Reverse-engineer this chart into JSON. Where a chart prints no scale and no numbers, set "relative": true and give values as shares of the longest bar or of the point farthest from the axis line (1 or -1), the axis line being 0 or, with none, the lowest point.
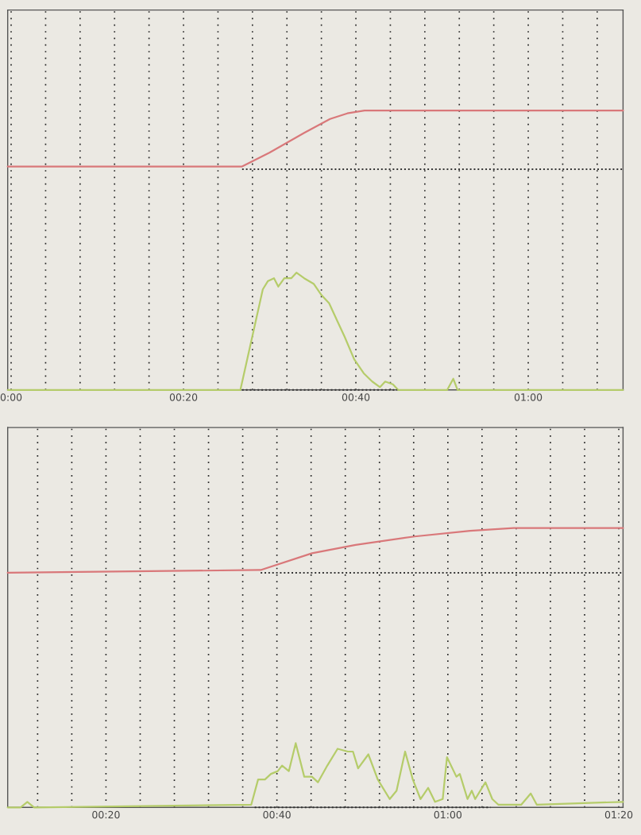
{
  "chart_data": [
    {
      "type": "line",
      "relative": true,
      "grid": "x",
      "xlim": [
        -0.4,
        71
      ],
      "xticks": [
        {
          "value": 0,
          "label": "0:00"
        },
        {
          "value": 4,
          "label": null
        },
        {
          "value": 8,
          "label": null
        },
        {
          "value": 12,
          "label": null
        },
        {
          "value": 16,
          "label": null
        },
        {
          "value": 20,
          "label": "00:20"
        },
        {
          "value": 24,
          "label": null
        },
        {
          "value": 28,
          "label": null
        },
        {
          "value": 32,
          "label": null
        },
        {
          "value": 36,
          "label": null
        },
        {
          "value": 40,
          "label": "00:40"
        },
        {
          "value": 44,
          "label": null
        },
        {
          "value": 48,
          "label": null
        },
        {
          "value": 52,
          "label": null
        },
        {
          "value": 56,
          "label": null
        },
        {
          "value": 60,
          "label": "01:00"
        },
        {
          "value": 64,
          "label": null
        },
        {
          "value": 68,
          "label": null
        }
      ],
      "series": [
        {
          "color": "#333333",
          "line_style": "dotted",
          "x": [
            26.8,
            71
          ],
          "values": [
            0.79,
            0.79
          ]
        },
        {
          "color": "#333333",
          "line_style": "dotted",
          "x": [
            26.8,
            44.8
          ],
          "values": [
            0.0,
            0.0
          ]
        },
        {
          "color": "#d9787a",
          "line_style": "solid",
          "x": [
            -0.4,
            26.8,
            30,
            34,
            37,
            39,
            41,
            45,
            71
          ],
          "values": [
            0.8,
            0.8,
            0.85,
            0.92,
            0.97,
            0.99,
            1.0,
            1.0,
            1.0
          ]
        },
        {
          "color": "#b5cc6a",
          "line_style": "solid",
          "x": [
            -0.4,
            26.6,
            29.2,
            29.8,
            30.5,
            31.0,
            31.7,
            32.5,
            33.1,
            34.0,
            35.1,
            36.0,
            36.9,
            37.8,
            38.7,
            39.8,
            40.9,
            41.9,
            42.8,
            43.4,
            44.3,
            44.9,
            50.6,
            51.3,
            51.8,
            71
          ],
          "values": [
            0.0,
            0.0,
            0.36,
            0.39,
            0.4,
            0.37,
            0.4,
            0.4,
            0.42,
            0.4,
            0.38,
            0.34,
            0.31,
            0.25,
            0.19,
            0.11,
            0.06,
            0.03,
            0.01,
            0.03,
            0.02,
            0.0,
            0.0,
            0.04,
            0.0,
            0.0
          ]
        }
      ]
    },
    {
      "type": "line",
      "relative": true,
      "grid": "x",
      "xlim": [
        8.5,
        80.5
      ],
      "xticks": [
        {
          "value": 12,
          "label": null
        },
        {
          "value": 16,
          "label": null
        },
        {
          "value": 20,
          "label": "00:20"
        },
        {
          "value": 24,
          "label": null
        },
        {
          "value": 28,
          "label": null
        },
        {
          "value": 32,
          "label": null
        },
        {
          "value": 36,
          "label": null
        },
        {
          "value": 40,
          "label": "00:40"
        },
        {
          "value": 44,
          "label": null
        },
        {
          "value": 48,
          "label": null
        },
        {
          "value": 52,
          "label": null
        },
        {
          "value": 56,
          "label": null
        },
        {
          "value": 60,
          "label": "01:00"
        },
        {
          "value": 64,
          "label": null
        },
        {
          "value": 68,
          "label": null
        },
        {
          "value": 72,
          "label": null
        },
        {
          "value": 76,
          "label": null
        },
        {
          "value": 80,
          "label": "01:20"
        }
      ],
      "series": [
        {
          "color": "#333333",
          "line_style": "dotted",
          "x": [
            38.1,
            80.5
          ],
          "values": [
            0.84,
            0.84
          ]
        },
        {
          "color": "#333333",
          "line_style": "dotted",
          "x": [
            37.4,
            65.0
          ],
          "values": [
            0.0,
            0.0
          ]
        },
        {
          "color": "#d9787a",
          "line_style": "solid",
          "x": [
            8.5,
            38.1,
            44.1,
            49.2,
            56.1,
            62.6,
            67.7,
            80.5
          ],
          "values": [
            0.84,
            0.85,
            0.91,
            0.94,
            0.97,
            0.99,
            1.0,
            1.0
          ]
        },
        {
          "color": "#b5cc6a",
          "line_style": "solid",
          "x": [
            8.5,
            10.0,
            10.8,
            11.6,
            37.0,
            37.8,
            38.6,
            39.3,
            40.1,
            40.6,
            41.4,
            42.2,
            43.2,
            44.1,
            44.8,
            45.9,
            47.1,
            48.3,
            48.9,
            49.5,
            50.7,
            51.8,
            53.2,
            54.0,
            55.0,
            55.9,
            56.8,
            57.7,
            58.5,
            59.4,
            59.9,
            61.0,
            61.4,
            62.3,
            62.8,
            63.2,
            64.4,
            65.2,
            65.9,
            68.6,
            69.7,
            70.4,
            80.5
          ],
          "values": [
            0.0,
            0.0,
            0.02,
            0.0,
            0.01,
            0.1,
            0.1,
            0.12,
            0.13,
            0.15,
            0.13,
            0.23,
            0.11,
            0.11,
            0.09,
            0.15,
            0.21,
            0.2,
            0.2,
            0.14,
            0.19,
            0.1,
            0.03,
            0.06,
            0.2,
            0.1,
            0.03,
            0.07,
            0.02,
            0.03,
            0.18,
            0.11,
            0.12,
            0.03,
            0.06,
            0.03,
            0.09,
            0.03,
            0.01,
            0.01,
            0.05,
            0.01,
            0.02
          ]
        }
      ]
    }
  ]
}
